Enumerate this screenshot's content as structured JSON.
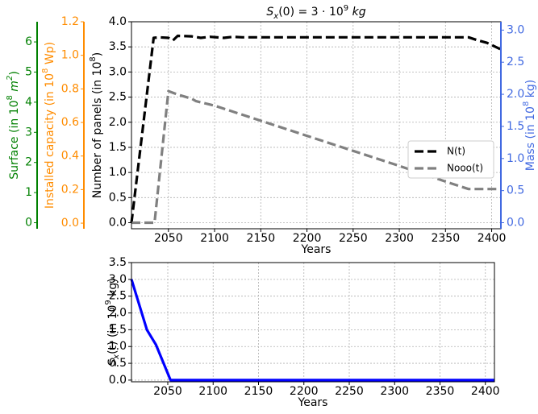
{
  "chart_data": [
    {
      "type": "line",
      "title": "S_x(0) = 3 · 10^9 kg",
      "title_parts": {
        "prefix": "S",
        "sub": "x",
        "mid": "(0) = 3 · 10",
        "sup": "9",
        "suffix": " kg"
      },
      "xlabel": "Years",
      "xlim": [
        2010,
        2410
      ],
      "xticks": [
        2050,
        2100,
        2150,
        2200,
        2250,
        2300,
        2350,
        2400
      ],
      "ylabel": "Number of panels (in 10^8)",
      "ylabel_parts": {
        "prefix": "Number of panels (in 10",
        "sup": "8",
        "suffix": ")"
      },
      "ylim": [
        -0.12,
        4.0
      ],
      "yticks": [
        "0.0",
        "0.5",
        "1.0",
        "1.5",
        "2.0",
        "2.5",
        "3.0",
        "3.5",
        "4.0"
      ],
      "grid": "dotted",
      "legend_position": "right",
      "series": [
        {
          "name": "N(t)",
          "color": "#000000",
          "dash": "dashed",
          "x": [
            2010,
            2034,
            2040,
            2050,
            2055,
            2060,
            2075,
            2085,
            2095,
            2110,
            2120,
            2130,
            2200,
            2300,
            2375,
            2385,
            2395,
            2410
          ],
          "y": [
            0.0,
            3.68,
            3.69,
            3.68,
            3.63,
            3.72,
            3.71,
            3.68,
            3.7,
            3.68,
            3.7,
            3.69,
            3.69,
            3.69,
            3.69,
            3.63,
            3.58,
            3.45
          ]
        },
        {
          "name": "Nooo(t)",
          "color": "#808080",
          "dash": "dashed",
          "x": [
            2010,
            2035,
            2050,
            2060,
            2075,
            2080,
            2100,
            2150,
            2200,
            2250,
            2300,
            2350,
            2375,
            2410
          ],
          "y": [
            0.0,
            0.0,
            2.62,
            2.55,
            2.47,
            2.42,
            2.33,
            2.03,
            1.73,
            1.43,
            1.13,
            0.82,
            0.67,
            0.67
          ]
        }
      ],
      "extra_axes": [
        {
          "label": "Mass (in 10^8 kg)",
          "label_parts": {
            "prefix": "Mass (in 10",
            "sup": "8",
            "suffix": " kg)"
          },
          "side": "right",
          "color": "#4169e1",
          "lim": [
            -0.094,
            3.13
          ],
          "ticks": [
            "0.0",
            "0.5",
            "1.0",
            "1.5",
            "2.0",
            "2.5",
            "3.0"
          ]
        },
        {
          "label": "Installed capacity (in 10^8 Wp)",
          "label_parts": {
            "prefix": "Installed capacity (in 10",
            "sup": "8",
            "suffix": " Wp)"
          },
          "side": "left",
          "color": "#ff8c00",
          "lim": [
            -0.0333,
            1.2
          ],
          "ticks": [
            "0.0",
            "0.2",
            "0.4",
            "0.6",
            "0.8",
            "1.0",
            "1.2"
          ]
        },
        {
          "label": "Surface (in 10^8 m^2)",
          "label_parts": {
            "prefix": "Surface (in 10",
            "sup": "8",
            "mid": " m",
            "sup2": "2",
            "suffix": ")"
          },
          "side": "left",
          "color": "#008000",
          "lim": [
            -0.2,
            6.67
          ],
          "ticks": [
            "0",
            "1",
            "2",
            "3",
            "4",
            "5",
            "6"
          ]
        }
      ]
    },
    {
      "type": "line",
      "title": "",
      "xlabel": "Years",
      "xlim": [
        2010,
        2410
      ],
      "xticks": [
        2050,
        2100,
        2150,
        2200,
        2250,
        2300,
        2350,
        2400
      ],
      "ylabel": "S_x(t) (in 10^9 kg)",
      "ylabel_parts": {
        "prefix": "S",
        "sub": "x",
        "mid": "(t) (in 10",
        "sup": "9",
        "suffix": " kg)"
      },
      "ylim": [
        -0.05,
        3.5
      ],
      "yticks": [
        "0.0",
        "0.5",
        "1.0",
        "1.5",
        "2.0",
        "2.5",
        "3.0",
        "3.5"
      ],
      "grid": "dotted",
      "series": [
        {
          "color": "#0000ff",
          "x": [
            2010,
            2027,
            2037,
            2053,
            2410
          ],
          "y": [
            3.0,
            1.5,
            1.05,
            0.0,
            0.0
          ]
        }
      ]
    }
  ]
}
